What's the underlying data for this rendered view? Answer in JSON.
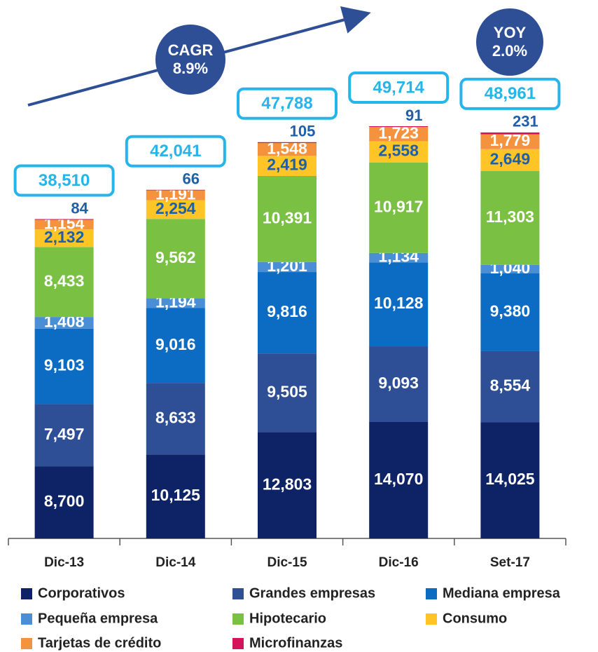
{
  "chart_data": {
    "type": "stacked_bar",
    "categories": [
      "Dic-13",
      "Dic-14",
      "Dic-15",
      "Dic-16",
      "Set-17"
    ],
    "series": [
      {
        "name": "Corporativos",
        "color": "#0d2366",
        "label_color": "#ffffff",
        "values": [
          8700,
          10125,
          12803,
          14070,
          14025
        ],
        "value_labels": [
          "8,700",
          "10,125",
          "12,803",
          "14,070",
          "14,025"
        ]
      },
      {
        "name": "Grandes empresas",
        "color": "#2e4f95",
        "label_color": "#ffffff",
        "values": [
          7497,
          8633,
          9505,
          9093,
          8554
        ],
        "value_labels": [
          "7,497",
          "8,633",
          "9,505",
          "9,093",
          "8,554"
        ]
      },
      {
        "name": "Mediana empresa",
        "color": "#0c6cc4",
        "label_color": "#ffffff",
        "values": [
          9103,
          9016,
          9816,
          10128,
          9380
        ],
        "value_labels": [
          "9,103",
          "9,016",
          "9,816",
          "10,128",
          "9,380"
        ]
      },
      {
        "name": "Pequeña empresa",
        "color": "#4a8fd6",
        "label_color": "#ffffff",
        "values": [
          1408,
          1194,
          1201,
          1134,
          1040
        ],
        "value_labels": [
          "1,408",
          "1,194",
          "1,201",
          "1,134",
          "1,040"
        ]
      },
      {
        "name": "Hipotecario",
        "color": "#7ac143",
        "label_color": "#ffffff",
        "values": [
          8433,
          9562,
          10391,
          10917,
          11303
        ],
        "value_labels": [
          "8,433",
          "9,562",
          "10,391",
          "10,917",
          "11,303"
        ]
      },
      {
        "name": "Consumo",
        "color": "#ffc425",
        "label_color": "#1f5fa8",
        "values": [
          2132,
          2254,
          2419,
          2558,
          2649
        ],
        "value_labels": [
          "2,132",
          "2,254",
          "2,419",
          "2,558",
          "2,649"
        ]
      },
      {
        "name": "Tarjetas de crédito",
        "color": "#f5923e",
        "label_color": "#ffffff",
        "values": [
          1154,
          1191,
          1548,
          1723,
          1779
        ],
        "value_labels": [
          "1,154",
          "1,191",
          "1,548",
          "1,723",
          "1,779"
        ]
      },
      {
        "name": "Microfinanzas",
        "color": "#d4145a",
        "label_color": "#1f5fa8",
        "label_above": true,
        "values": [
          84,
          66,
          105,
          91,
          231
        ]
      }
    ],
    "totals": [
      38510,
      42041,
      47788,
      49714,
      48961
    ],
    "total_labels": [
      "38,510",
      "42,041",
      "47,788",
      "49,714",
      "48,961"
    ],
    "annotations": [
      {
        "lines": [
          "CAGR",
          "8.9%"
        ]
      },
      {
        "lines": [
          "YOY",
          "2.0%"
        ]
      }
    ]
  }
}
